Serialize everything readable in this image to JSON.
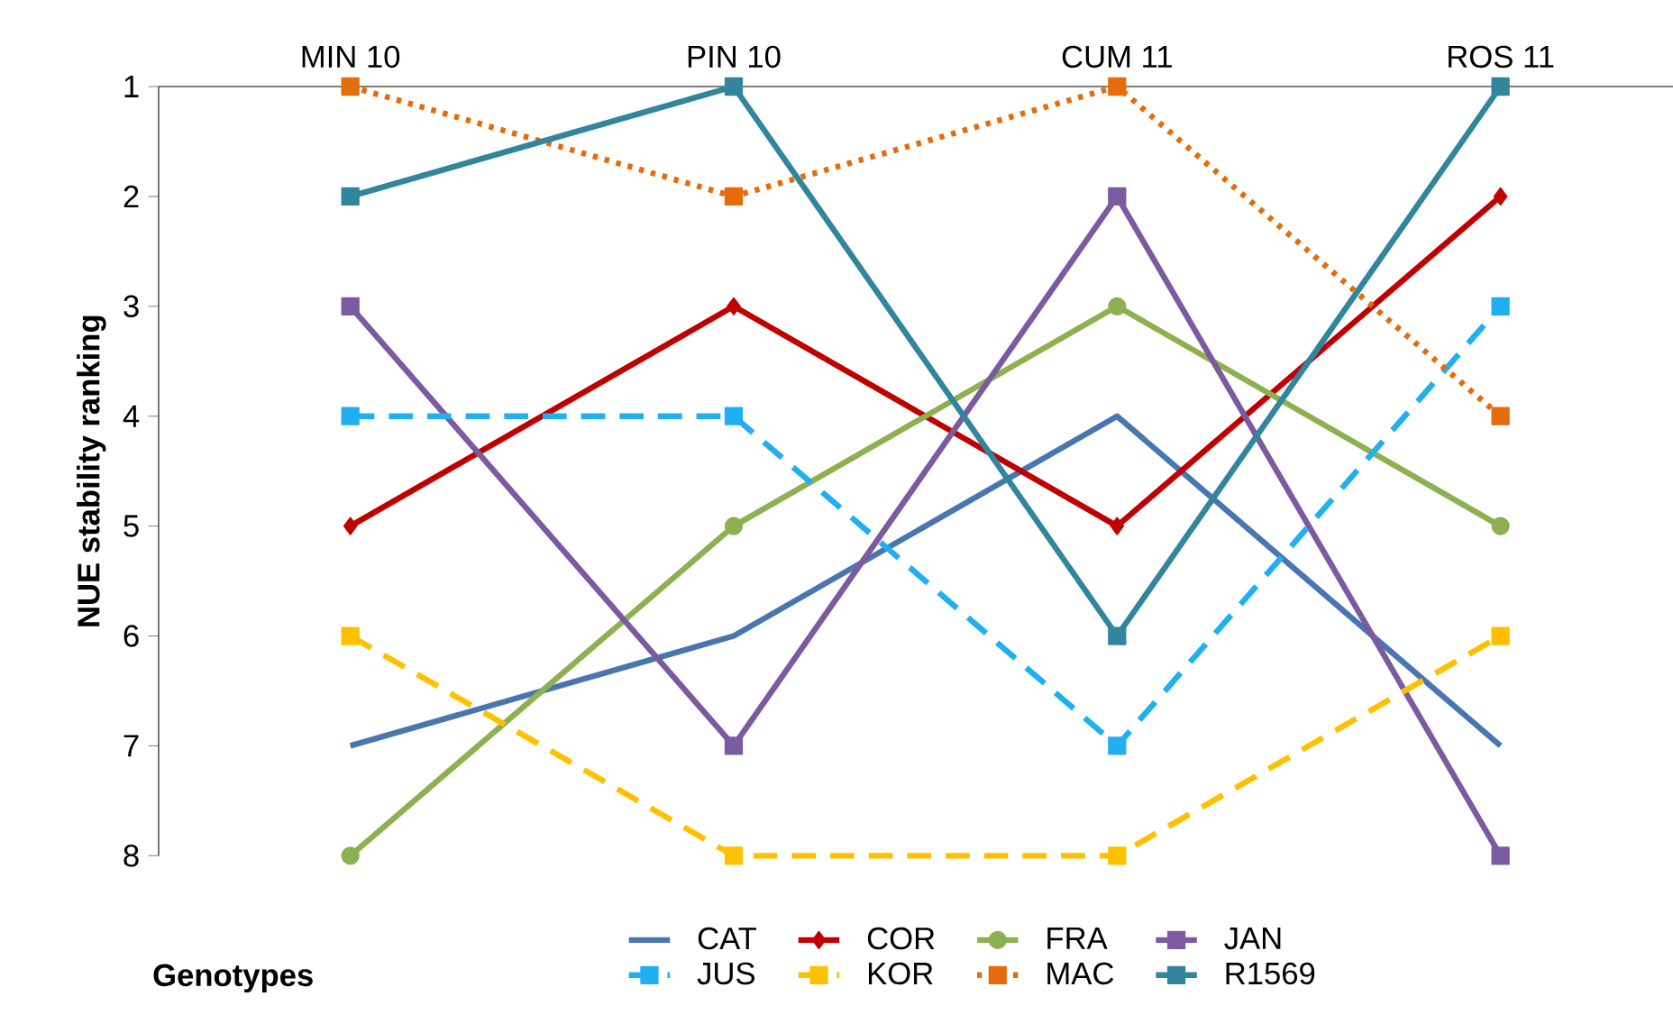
{
  "chart_data": {
    "type": "line",
    "ylabel": "NUE stability ranking",
    "legend_title": "Genotypes",
    "categories": [
      "MIN 10",
      "PIN 10",
      "CUM 11",
      "ROS 11"
    ],
    "ylim": [
      8,
      1
    ],
    "yticks": [
      1,
      2,
      3,
      4,
      5,
      6,
      7,
      8
    ],
    "grid": false,
    "legend": "bottom",
    "series": [
      {
        "name": "CAT",
        "color": "#4a76b0",
        "values": [
          7,
          6,
          4,
          7
        ],
        "marker": "none",
        "line_style": "solid"
      },
      {
        "name": "COR",
        "color": "#c00000",
        "values": [
          5,
          3,
          5,
          2
        ],
        "marker": "diamond",
        "line_style": "solid"
      },
      {
        "name": "FRA",
        "color": "#8db050",
        "values": [
          8,
          5,
          3,
          5
        ],
        "marker": "circle",
        "line_style": "solid"
      },
      {
        "name": "JAN",
        "color": "#7b5aa0",
        "values": [
          3,
          7,
          2,
          8
        ],
        "marker": "square",
        "line_style": "solid"
      },
      {
        "name": "JUS",
        "color": "#20b0f0",
        "values": [
          4,
          4,
          7,
          3
        ],
        "marker": "square",
        "line_style": "dashed"
      },
      {
        "name": "KOR",
        "color": "#ffc000",
        "values": [
          6,
          8,
          8,
          6
        ],
        "marker": "square",
        "line_style": "dashed"
      },
      {
        "name": "MAC",
        "color": "#e46c0a",
        "values": [
          1,
          2,
          1,
          4
        ],
        "marker": "square",
        "line_style": "dotted"
      },
      {
        "name": "R1569",
        "color": "#31859c",
        "values": [
          2,
          1,
          6,
          1
        ],
        "marker": "square",
        "line_style": "solid"
      }
    ]
  }
}
